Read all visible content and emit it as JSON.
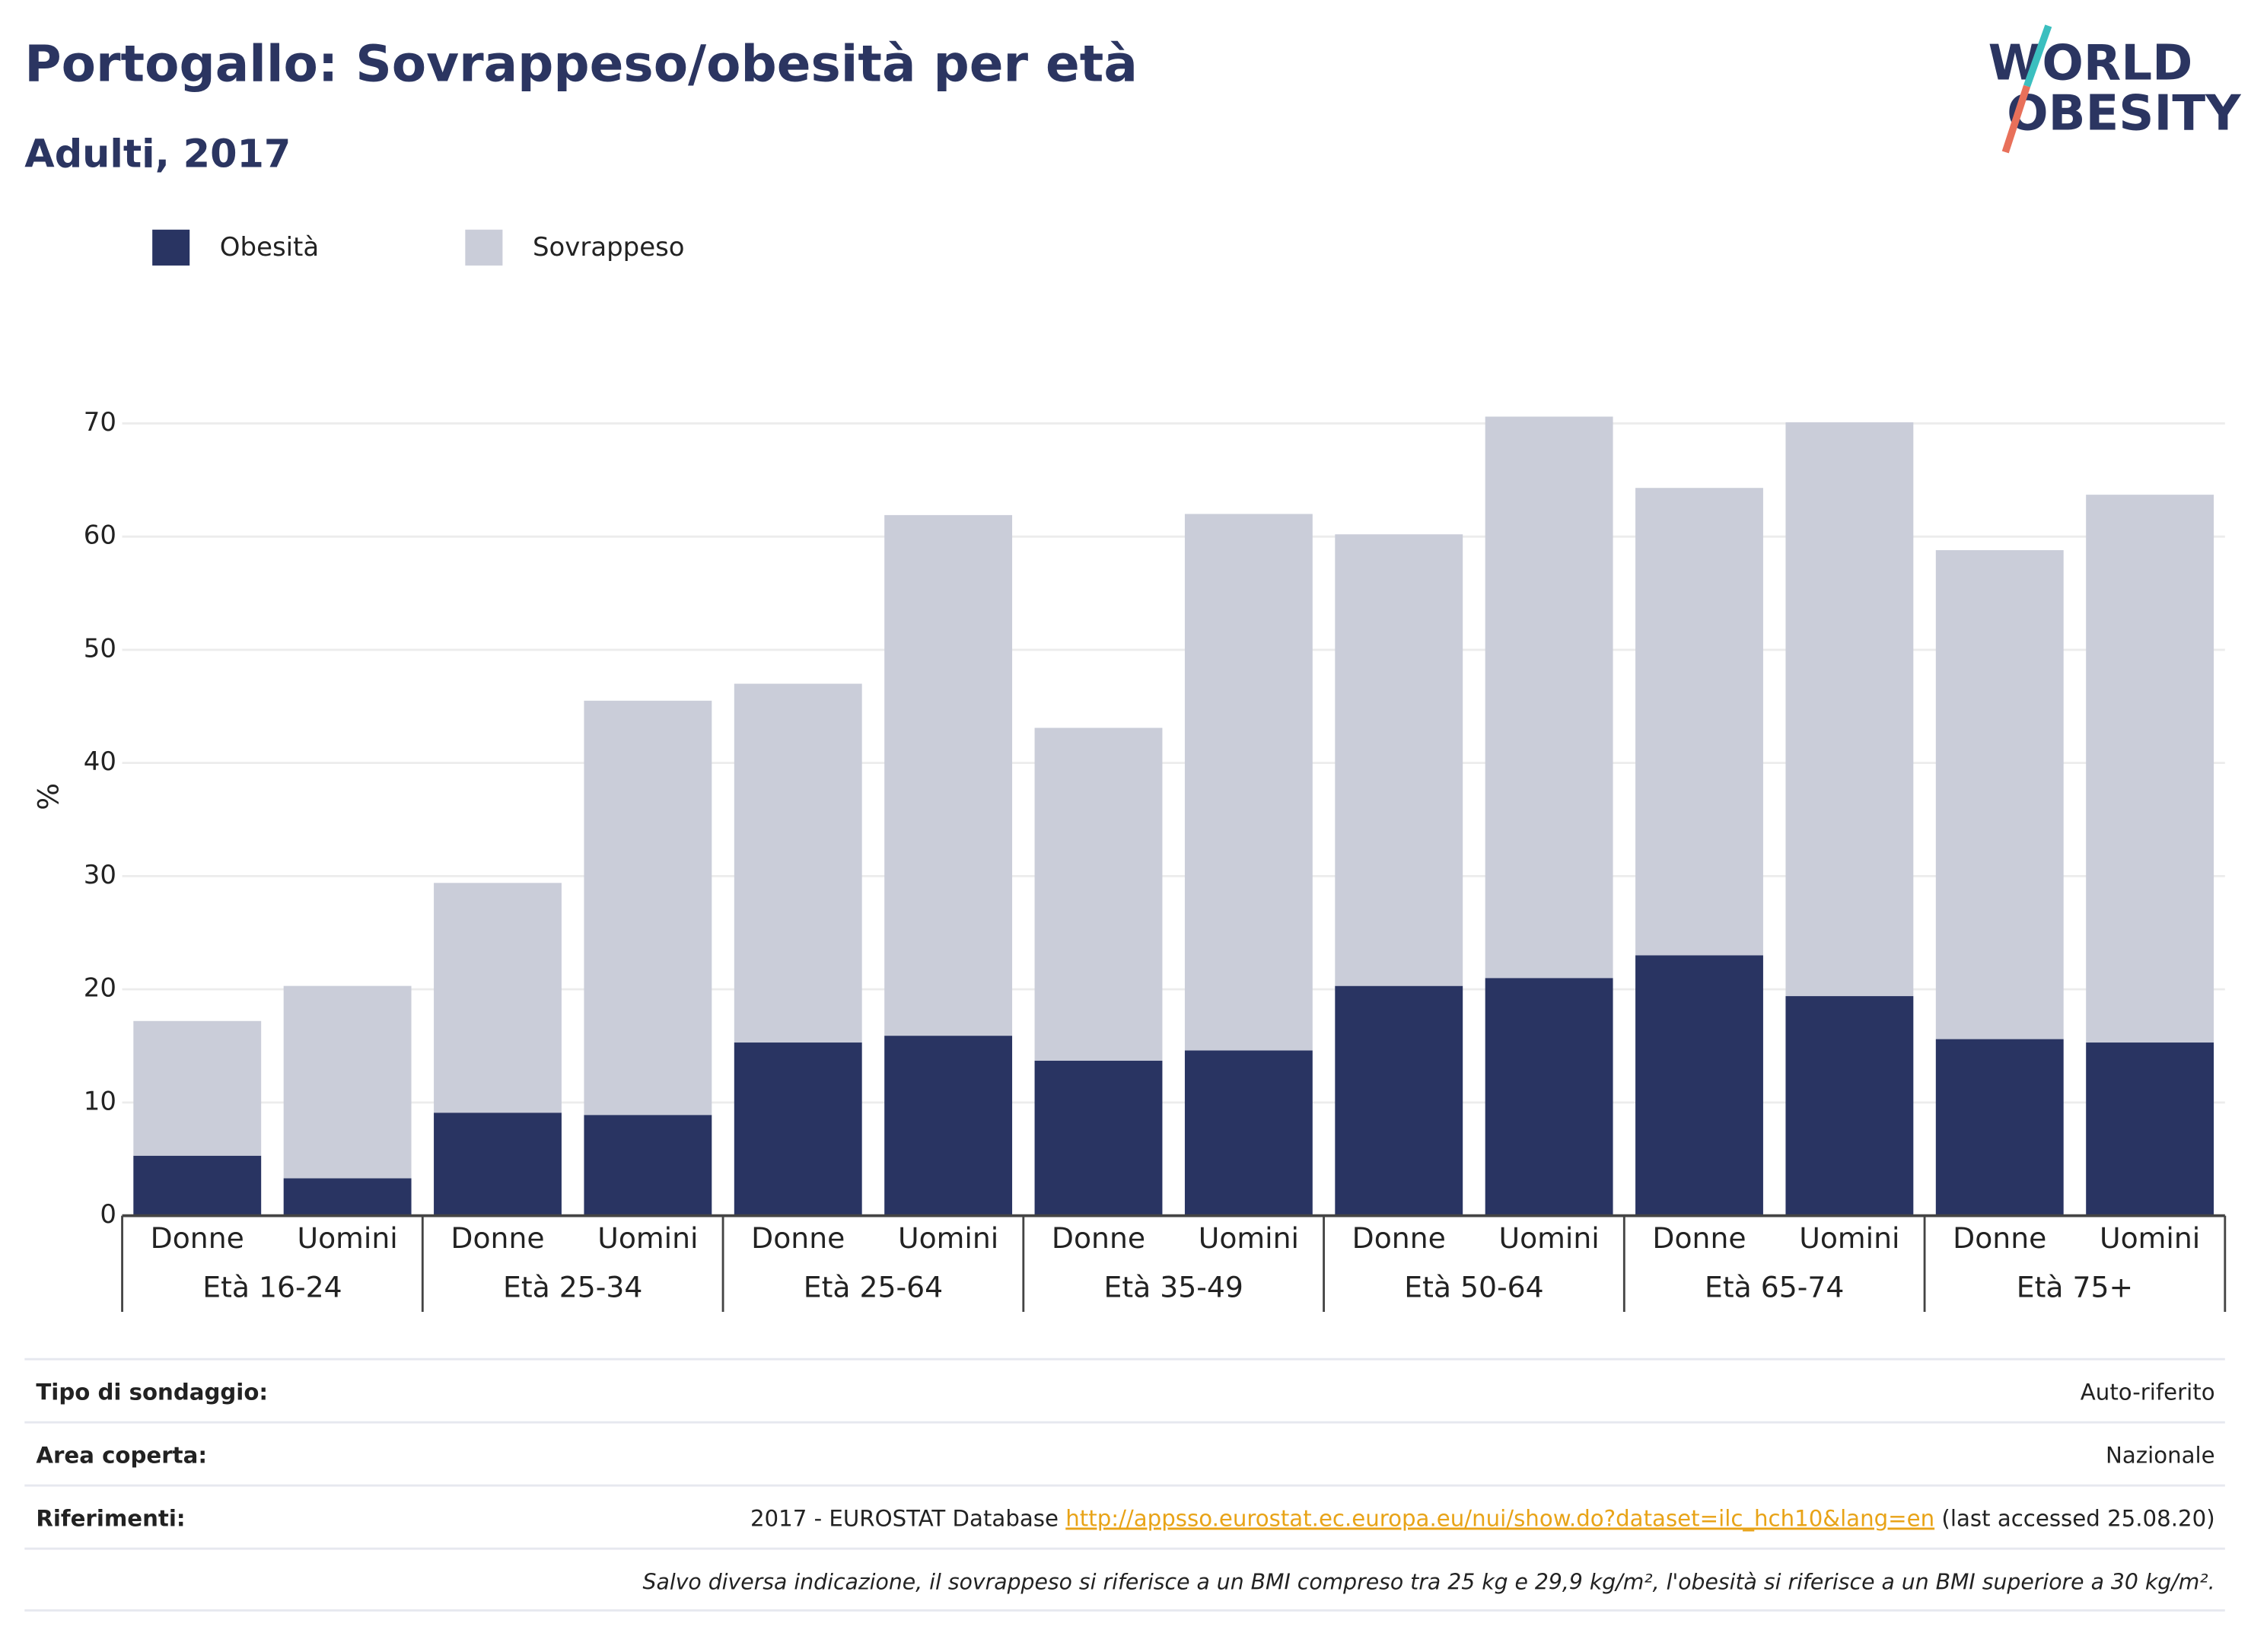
{
  "chart_data": {
    "type": "stacked_bar",
    "title": "Portogallo: Sovrappeso/obesità per età",
    "subtitle": "Adulti, 2017",
    "y_label": "%",
    "categories": [
      "Donne",
      "Uomini",
      "Donne",
      "Uomini",
      "Donne",
      "Uomini",
      "Donne",
      "Uomini",
      "Donne",
      "Uomini",
      "Donne",
      "Uomini",
      "Donne",
      "Uomini"
    ],
    "groups": [
      "Età 16-24",
      "Età 25-34",
      "Età 25-64",
      "Età 35-49",
      "Età 50-64",
      "Età 65-74",
      "Età 75+"
    ],
    "series": [
      {
        "name": "Obesità",
        "color": "#293462",
        "values": [
          5.3,
          3.3,
          9.1,
          8.9,
          15.3,
          15.9,
          13.7,
          14.6,
          20.3,
          21.0,
          23.0,
          19.4,
          15.6,
          15.3
        ]
      },
      {
        "name": "Sovrappeso",
        "color": "#cacdd9",
        "values": [
          11.9,
          17.0,
          20.3,
          36.6,
          31.7,
          46.0,
          29.4,
          47.4,
          39.9,
          49.6,
          41.3,
          50.7,
          43.2,
          48.4
        ]
      }
    ],
    "ylim": [
      0,
      70
    ],
    "yticks": [
      0,
      10,
      20,
      30,
      40,
      50,
      60,
      70
    ],
    "grid": true,
    "legend": "top-left"
  },
  "logo": [
    "WORLD",
    "OBESITY"
  ],
  "footer": {
    "rows": [
      {
        "label": "Tipo di sondaggio:",
        "value": "Auto-riferito"
      },
      {
        "label": "Area coperta:",
        "value": "Nazionale"
      }
    ],
    "references": {
      "label": "Riferimenti:",
      "prefix": "2017 - EUROSTAT Database ",
      "link": "http://appsso.eurostat.ec.europa.eu/nui/show.do?dataset=ilc_hch10&lang=en",
      "suffix": " (last accessed 25.08.20)"
    },
    "note": "Salvo diversa indicazione, il sovrappeso si riferisce a un BMI compreso tra 25 kg e 29,9 kg/m², l'obesità si riferisce a un BMI superiore a 30 kg/m²."
  }
}
